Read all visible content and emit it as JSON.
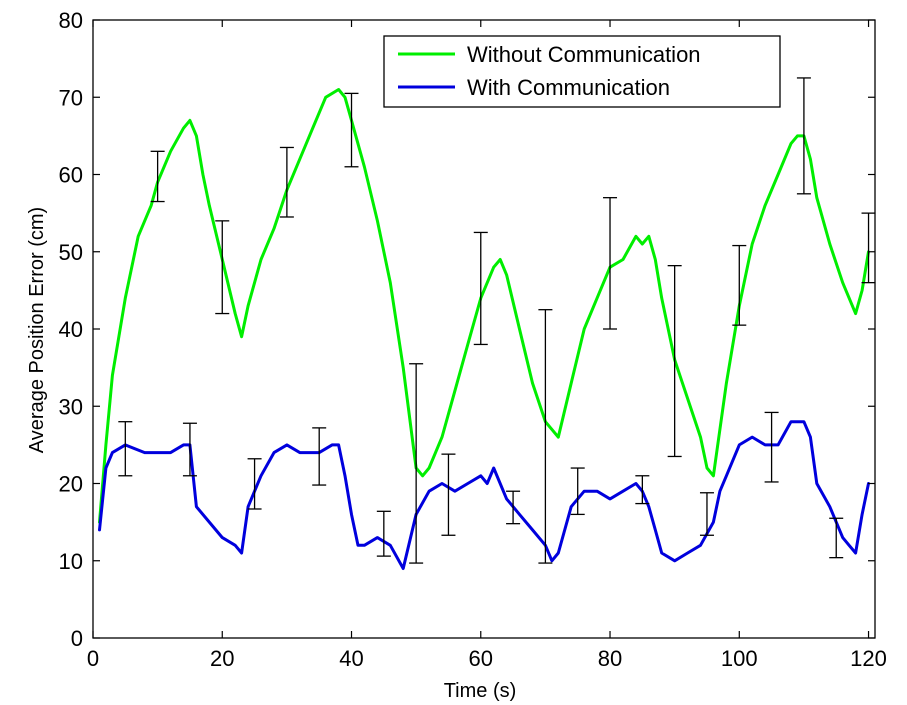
{
  "chart_data": {
    "type": "line",
    "xlabel": "Time (s)",
    "ylabel": "Average Position Error (cm)",
    "xlim": [
      0,
      121
    ],
    "ylim": [
      0,
      80
    ],
    "xticks": [
      0,
      20,
      40,
      60,
      80,
      100,
      120
    ],
    "yticks": [
      0,
      10,
      20,
      30,
      40,
      50,
      60,
      70,
      80
    ],
    "legend_position": "top-right",
    "series": [
      {
        "name": "Without Communication",
        "color": "#00ee00",
        "x": [
          1,
          2,
          3,
          5,
          7,
          9,
          10,
          12,
          14,
          15,
          16,
          17,
          18,
          20,
          22,
          23,
          24,
          26,
          28,
          30,
          32,
          34,
          36,
          38,
          39,
          40,
          42,
          44,
          46,
          48,
          50,
          51,
          52,
          54,
          56,
          58,
          60,
          62,
          63,
          64,
          66,
          68,
          70,
          72,
          74,
          76,
          78,
          80,
          82,
          84,
          85,
          86,
          87,
          88,
          90,
          92,
          94,
          95,
          96,
          97,
          98,
          100,
          102,
          104,
          106,
          108,
          109,
          110,
          111,
          112,
          114,
          116,
          118,
          119,
          120
        ],
        "y": [
          15,
          25,
          34,
          44,
          52,
          56,
          59,
          63,
          66,
          67,
          65,
          60,
          56,
          49,
          42,
          39,
          43,
          49,
          53,
          58,
          62,
          66,
          70,
          71,
          70,
          67,
          61,
          54,
          46,
          35,
          22,
          21,
          22,
          26,
          32,
          38,
          44,
          48,
          49,
          47,
          40,
          33,
          28,
          26,
          33,
          40,
          44,
          48,
          49,
          52,
          51,
          52,
          49,
          44,
          36,
          31,
          26,
          22,
          21,
          27,
          33,
          43,
          51,
          56,
          60,
          64,
          65,
          65,
          62,
          57,
          51,
          46,
          42,
          45,
          50
        ]
      },
      {
        "name": "With Communication",
        "color": "#0000dd",
        "x": [
          1,
          2,
          3,
          5,
          8,
          10,
          12,
          14,
          15,
          16,
          18,
          20,
          22,
          23,
          24,
          26,
          28,
          30,
          32,
          35,
          37,
          38,
          39,
          40,
          41,
          42,
          44,
          46,
          48,
          50,
          52,
          54,
          56,
          58,
          60,
          61,
          62,
          64,
          66,
          68,
          70,
          71,
          72,
          74,
          76,
          78,
          80,
          82,
          84,
          85,
          86,
          87,
          88,
          90,
          92,
          94,
          96,
          97,
          98,
          100,
          102,
          104,
          106,
          108,
          109,
          110,
          111,
          112,
          114,
          116,
          117,
          118,
          119,
          120
        ],
        "y": [
          14,
          22,
          24,
          25,
          24,
          24,
          24,
          25,
          25,
          17,
          15,
          13,
          12,
          11,
          17,
          21,
          24,
          25,
          24,
          24,
          25,
          25,
          21,
          16,
          12,
          12,
          13,
          12,
          9,
          16,
          19,
          20,
          19,
          20,
          21,
          20,
          22,
          18,
          16,
          14,
          12,
          10,
          11,
          17,
          19,
          19,
          18,
          19,
          20,
          19,
          17,
          14,
          11,
          10,
          11,
          12,
          15,
          19,
          21,
          25,
          26,
          25,
          25,
          28,
          28,
          28,
          26,
          20,
          17,
          13,
          12,
          11,
          16,
          20
        ]
      }
    ],
    "error_bars": [
      {
        "series": "Without Communication",
        "x": 10,
        "y": 59.7,
        "low": 56.5,
        "high": 63
      },
      {
        "series": "Without Communication",
        "x": 20,
        "y": 48,
        "low": 42,
        "high": 54
      },
      {
        "series": "Without Communication",
        "x": 30,
        "y": 59,
        "low": 54.5,
        "high": 63.5
      },
      {
        "series": "Without Communication",
        "x": 40,
        "y": 66,
        "low": 61,
        "high": 70.5
      },
      {
        "series": "Without Communication",
        "x": 50,
        "y": 22.5,
        "low": 9.7,
        "high": 35.5
      },
      {
        "series": "Without Communication",
        "x": 60,
        "y": 45,
        "low": 38,
        "high": 52.5
      },
      {
        "series": "Without Communication",
        "x": 70,
        "y": 26,
        "low": 9.7,
        "high": 42.5
      },
      {
        "series": "Without Communication",
        "x": 80,
        "y": 48.5,
        "low": 40,
        "high": 57
      },
      {
        "series": "Without Communication",
        "x": 90,
        "y": 36,
        "low": 23.5,
        "high": 48.2
      },
      {
        "series": "Without Communication",
        "x": 100,
        "y": 46,
        "low": 40.5,
        "high": 50.8
      },
      {
        "series": "Without Communication",
        "x": 110,
        "y": 65,
        "low": 57.5,
        "high": 72.5
      },
      {
        "series": "Without Communication",
        "x": 120,
        "y": 50.5,
        "low": 46,
        "high": 55
      },
      {
        "series": "With Communication",
        "x": 5,
        "y": 24.5,
        "low": 21,
        "high": 28
      },
      {
        "series": "With Communication",
        "x": 15,
        "y": 24.5,
        "low": 21,
        "high": 27.8
      },
      {
        "series": "With Communication",
        "x": 25,
        "y": 20,
        "low": 16.7,
        "high": 23.2
      },
      {
        "series": "With Communication",
        "x": 35,
        "y": 23.5,
        "low": 19.8,
        "high": 27.2
      },
      {
        "series": "With Communication",
        "x": 45,
        "y": 13.5,
        "low": 10.6,
        "high": 16.4
      },
      {
        "series": "With Communication",
        "x": 55,
        "y": 18.5,
        "low": 13.3,
        "high": 23.8
      },
      {
        "series": "With Communication",
        "x": 65,
        "y": 16.9,
        "low": 14.8,
        "high": 19
      },
      {
        "series": "With Communication",
        "x": 75,
        "y": 19,
        "low": 16,
        "high": 22
      },
      {
        "series": "With Communication",
        "x": 85,
        "y": 19.2,
        "low": 17.4,
        "high": 21
      },
      {
        "series": "With Communication",
        "x": 95,
        "y": 16,
        "low": 13.3,
        "high": 18.8
      },
      {
        "series": "With Communication",
        "x": 105,
        "y": 24.7,
        "low": 20.2,
        "high": 29.2
      },
      {
        "series": "With Communication",
        "x": 115,
        "y": 13,
        "low": 10.4,
        "high": 15.5
      }
    ]
  }
}
